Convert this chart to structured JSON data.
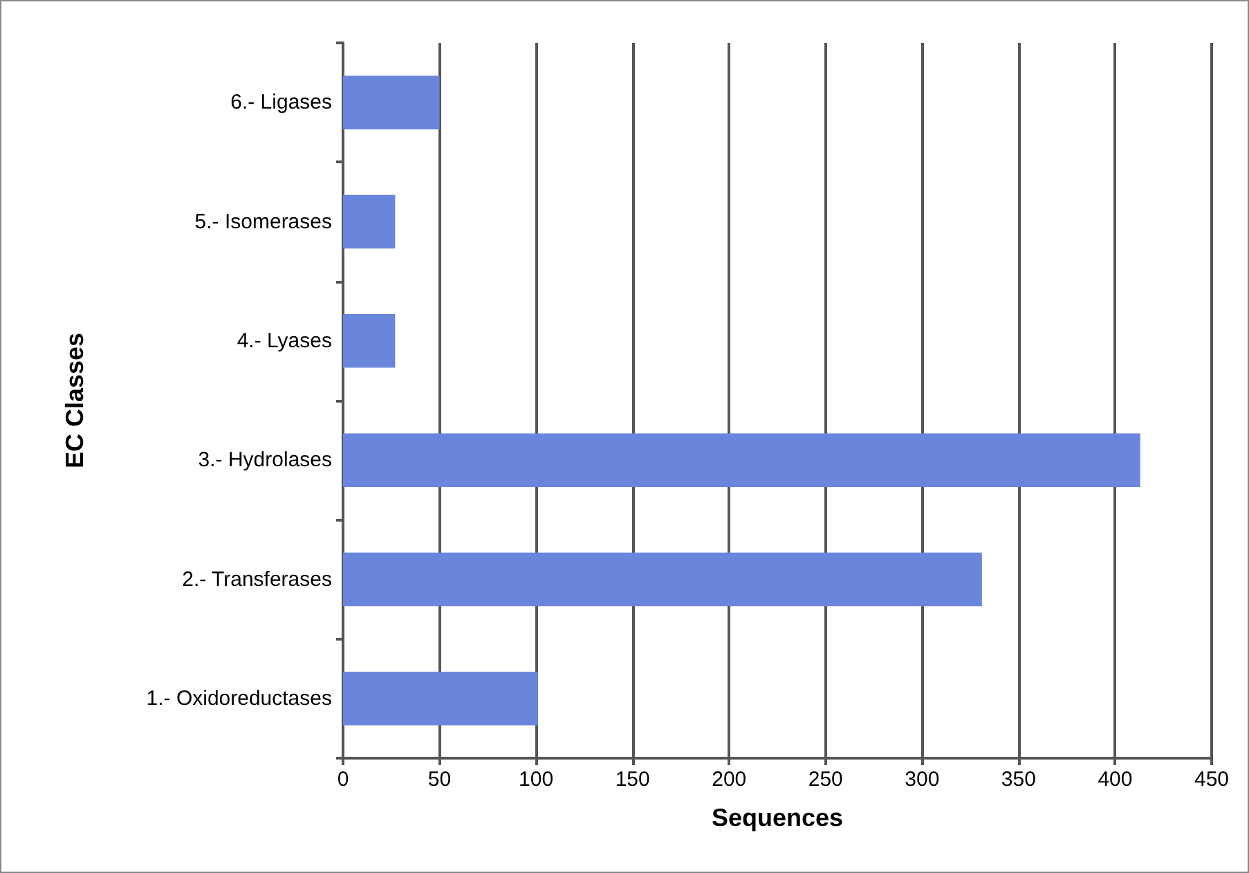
{
  "chart_data": {
    "type": "bar",
    "orientation": "horizontal",
    "xlabel": "Sequences",
    "ylabel": "EC Classes",
    "categories": [
      "6.- Ligases",
      "5.- Isomerases",
      "4.- Lyases",
      "3.- Hydrolases",
      "2.- Transferases",
      "1.- Oxidoreductases"
    ],
    "values": [
      50,
      27,
      27,
      413,
      331,
      101
    ],
    "color": "#6a86dc",
    "xlim": [
      0,
      450
    ],
    "xticks": [
      0,
      50,
      100,
      150,
      200,
      250,
      300,
      350,
      400,
      450
    ],
    "grid": "x"
  }
}
